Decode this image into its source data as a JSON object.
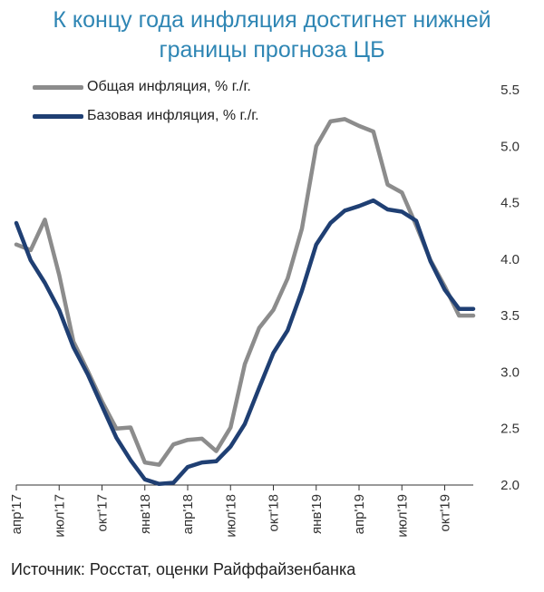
{
  "title_line1": "К концу года инфляция достигнет нижней",
  "title_line2": "границы прогноза ЦБ",
  "source": "Источник: Росстат, оценки Райффайзенбанка",
  "chart_data": {
    "type": "line",
    "x": [
      "апр'17",
      "май'17",
      "июн'17",
      "июл'17",
      "авг'17",
      "сен'17",
      "окт'17",
      "ноя'17",
      "дек'17",
      "янв'18",
      "фев'18",
      "мар'18",
      "апр'18",
      "май'18",
      "июн'18",
      "июл'18",
      "авг'18",
      "сен'18",
      "окт'18",
      "ноя'18",
      "дек'18",
      "янв'19",
      "фев'19",
      "мар'19",
      "апр'19",
      "май'19",
      "июн'19",
      "июл'19",
      "авг'19",
      "сен'19",
      "окт'19",
      "ноя'19",
      "дек'19"
    ],
    "x_tick_labels": [
      "апр'17",
      "июл'17",
      "окт'17",
      "янв'18",
      "апр'18",
      "июл'18",
      "окт'18",
      "янв'19",
      "апр'19",
      "июл'19",
      "окт'19"
    ],
    "ylim": [
      2.0,
      5.5
    ],
    "y_ticks": [
      "2.0",
      "2.5",
      "3.0",
      "3.5",
      "4.0",
      "4.5",
      "5.0",
      "5.5"
    ],
    "y_axis_side": "right",
    "grid": false,
    "legend_position": "top-left",
    "series": [
      {
        "name": "Общая инфляция, % г./г.",
        "color": "#8c8c8c",
        "values": [
          4.13,
          4.08,
          4.35,
          3.86,
          3.27,
          3.01,
          2.74,
          2.5,
          2.51,
          2.2,
          2.18,
          2.36,
          2.4,
          2.41,
          2.3,
          2.51,
          3.07,
          3.39,
          3.55,
          3.83,
          4.27,
          5.0,
          5.22,
          5.24,
          5.18,
          5.13,
          4.66,
          4.59,
          4.3,
          3.99,
          3.76,
          3.5,
          3.5
        ]
      },
      {
        "name": "Базовая инфляция, % г./г.",
        "color": "#1f3f73",
        "values": [
          4.32,
          3.99,
          3.79,
          3.55,
          3.22,
          2.98,
          2.7,
          2.42,
          2.22,
          2.05,
          2.01,
          2.02,
          2.16,
          2.2,
          2.21,
          2.34,
          2.54,
          2.86,
          3.17,
          3.37,
          3.72,
          4.13,
          4.32,
          4.43,
          4.47,
          4.52,
          4.44,
          4.42,
          4.34,
          3.98,
          3.73,
          3.56,
          3.56
        ]
      }
    ]
  }
}
